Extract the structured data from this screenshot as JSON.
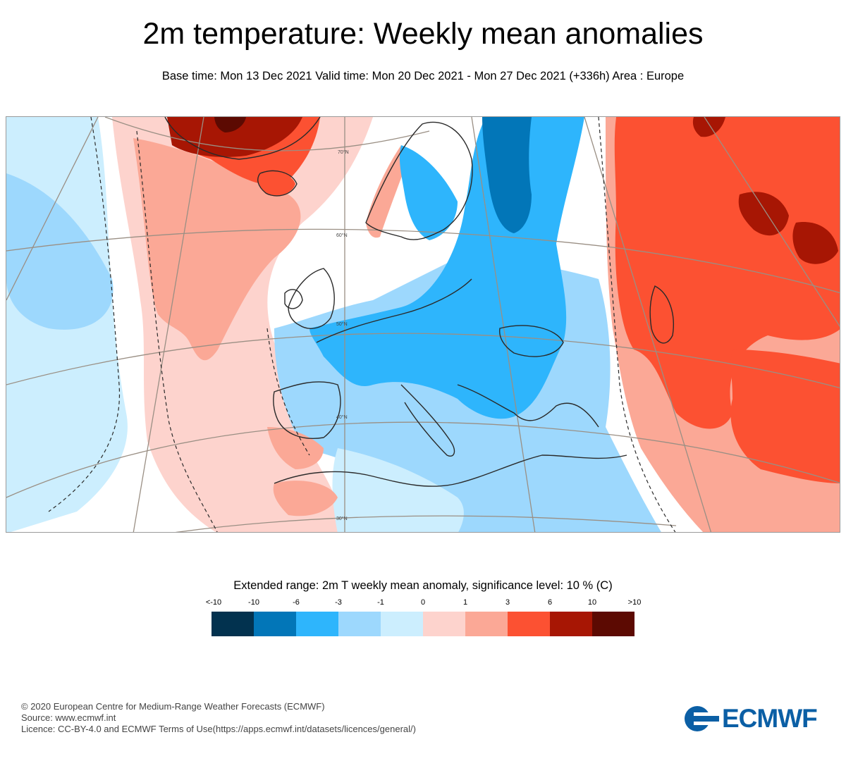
{
  "title": "2m temperature: Weekly mean anomalies",
  "subtitle": "Base time: Mon 13 Dec 2021 Valid time: Mon 20 Dec 2021 - Mon 27 Dec 2021 (+336h) Area : Europe",
  "map": {
    "area": "Europe",
    "lat_labels": [
      "70°N",
      "60°N",
      "50°N",
      "40°N",
      "30°N"
    ]
  },
  "legend": {
    "title": "Extended range: 2m T weekly mean anomaly, significance level: 10 % (C)",
    "ticks": [
      "<-10",
      "-10",
      "-6",
      "-3",
      "-1",
      "0",
      "1",
      "3",
      "6",
      "10",
      ">10"
    ],
    "colors": [
      "#02324f",
      "#0276b8",
      "#2eb5fc",
      "#9dd8fd",
      "#cceefe",
      "#fdd3cd",
      "#fba896",
      "#fc5132",
      "#a71604",
      "#5c0a02"
    ]
  },
  "footer": {
    "line1": "© 2020 European Centre for Medium-Range Weather Forecasts (ECMWF)",
    "line2": "Source: www.ecmwf.int",
    "line3": "Licence: CC-BY-4.0 and ECMWF Terms of Use(https://apps.ecmwf.int/datasets/licences/general/)"
  },
  "logo": {
    "text": "ECMWF",
    "color": "#0b5fa5"
  }
}
